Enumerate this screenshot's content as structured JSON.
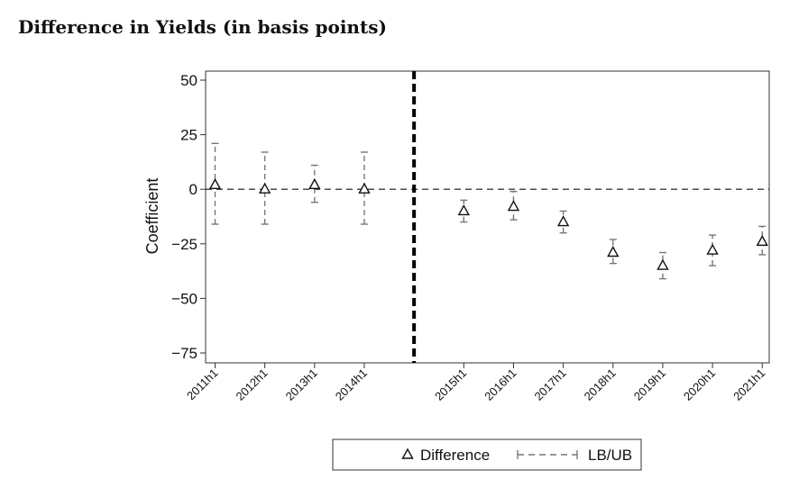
{
  "figure_title": "Difference in Yields (in basis points)",
  "chart_data": {
    "type": "scatter",
    "title": "Difference in Yields (in basis points)",
    "xlabel": "",
    "ylabel": "Coefficient",
    "ylim": [
      -75,
      50
    ],
    "yticks": [
      50,
      25,
      0,
      -25,
      -50,
      -75
    ],
    "ytick_labels": [
      "50",
      "25",
      "0",
      "−25",
      "−50",
      "−75"
    ],
    "grid": false,
    "reference_line_y": 0,
    "treatment_break": "between 2014h1 and 2015h1",
    "legend_position": "bottom-center",
    "categories": [
      "2011h1",
      "2012h1",
      "2013h1",
      "2014h1",
      "2015h1",
      "2016h1",
      "2017h1",
      "2018h1",
      "2019h1",
      "2020h1",
      "2021h1"
    ],
    "series": [
      {
        "name": "Difference",
        "marker": "triangle",
        "values": [
          2,
          0,
          2,
          0,
          -10,
          -8,
          -15,
          -29,
          -35,
          -28,
          -24
        ],
        "lower": [
          -16,
          -16,
          -6,
          -16,
          -15,
          -14,
          -20,
          -34,
          -41,
          -35,
          -30
        ],
        "upper": [
          21,
          17,
          11,
          17,
          -5,
          -1,
          -10,
          -23,
          -29,
          -21,
          -17
        ]
      }
    ],
    "legend": {
      "entries": [
        {
          "label": "Difference",
          "symbol": "triangle"
        },
        {
          "label": "LB/UB",
          "symbol": "dashed-capped-line"
        }
      ]
    }
  }
}
